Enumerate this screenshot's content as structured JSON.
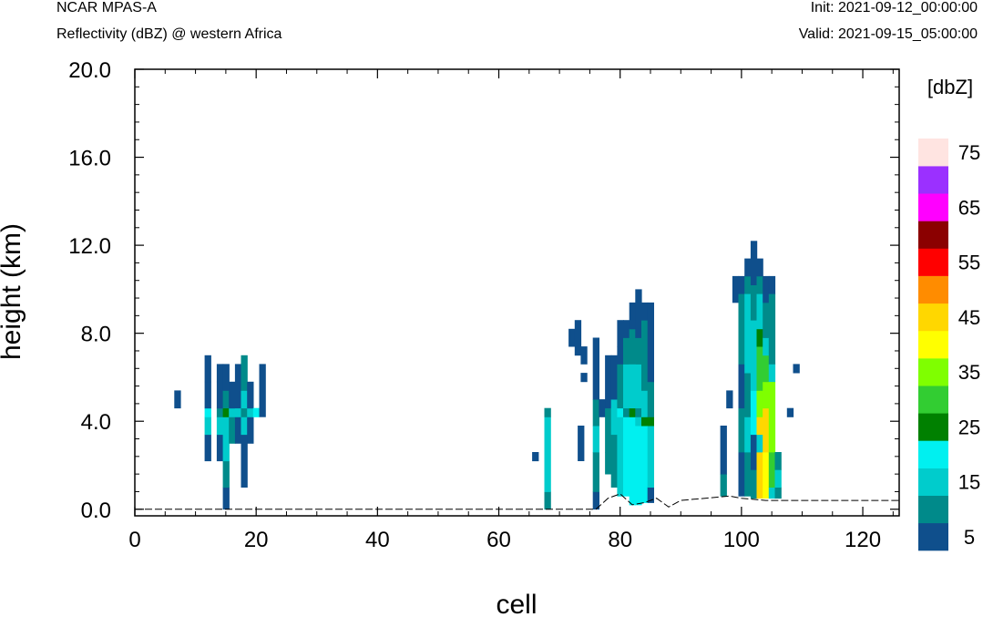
{
  "header": {
    "model": "NCAR MPAS-A",
    "field": "Reflectivity (dBZ) @ western Africa",
    "init": "Init: 2021-09-12_00:00:00",
    "valid": "Valid: 2021-09-15_05:00:00"
  },
  "chart_data": {
    "type": "heatmap",
    "xlabel": "cell",
    "ylabel": "height (km)",
    "xlim": [
      0,
      126
    ],
    "ylim": [
      -0.3,
      20.0
    ],
    "x_ticks": [
      "0",
      "20",
      "40",
      "60",
      "80",
      "100",
      "120"
    ],
    "y_ticks": [
      "0.0",
      "4.0",
      "8.0",
      "12.0",
      "16.0",
      "20.0"
    ],
    "colorbar": {
      "unit_label": "[dbZ]",
      "tick_labels": [
        "5",
        "15",
        "25",
        "35",
        "45",
        "55",
        "65",
        "75"
      ],
      "levels": [
        5,
        10,
        15,
        20,
        25,
        30,
        35,
        40,
        45,
        50,
        55,
        60,
        65,
        70,
        75
      ],
      "colors": [
        "#0f4f8c",
        "#008a8a",
        "#00cccc",
        "#00f0f0",
        "#008000",
        "#32cd32",
        "#7fff00",
        "#ffff00",
        "#ffd700",
        "#ff8c00",
        "#ff0000",
        "#8b0000",
        "#ff00ff",
        "#9b30ff",
        "#ffe4e1"
      ]
    },
    "terrain": [
      [
        76,
        0.0
      ],
      [
        78,
        0.5
      ],
      [
        80,
        0.7
      ],
      [
        82,
        0.2
      ],
      [
        84,
        0.3
      ],
      [
        86,
        0.5
      ],
      [
        88,
        0.1
      ],
      [
        90,
        0.4
      ],
      [
        94,
        0.5
      ],
      [
        98,
        0.6
      ],
      [
        100,
        0.5
      ],
      [
        104,
        0.4
      ],
      [
        110,
        0.4
      ],
      [
        120,
        0.4
      ],
      [
        126,
        0.4
      ]
    ],
    "columns": [
      {
        "x": 7,
        "cells": [
          [
            4.6,
            5.4,
            5
          ]
        ]
      },
      {
        "x": 12,
        "cells": [
          [
            2.2,
            3.4,
            5
          ],
          [
            3.4,
            4.2,
            15
          ],
          [
            4.2,
            4.6,
            20
          ],
          [
            4.6,
            5.8,
            5
          ],
          [
            5.8,
            7.0,
            5
          ]
        ]
      },
      {
        "x": 14,
        "cells": [
          [
            2.2,
            3.4,
            5
          ],
          [
            3.4,
            4.2,
            15
          ],
          [
            4.2,
            4.6,
            10
          ],
          [
            4.6,
            5.8,
            5
          ],
          [
            5.8,
            6.6,
            5
          ]
        ]
      },
      {
        "x": 15,
        "cells": [
          [
            0.0,
            1.0,
            5
          ],
          [
            1.0,
            2.2,
            10
          ],
          [
            2.2,
            4.2,
            15
          ],
          [
            4.2,
            4.6,
            25
          ],
          [
            4.6,
            5.4,
            10
          ],
          [
            5.4,
            6.6,
            5
          ]
        ]
      },
      {
        "x": 16,
        "cells": [
          [
            3.0,
            4.2,
            10
          ],
          [
            4.2,
            4.6,
            15
          ],
          [
            4.6,
            5.8,
            5
          ]
        ]
      },
      {
        "x": 17,
        "cells": [
          [
            3.0,
            4.2,
            5
          ],
          [
            4.2,
            4.6,
            15
          ],
          [
            4.6,
            6.6,
            5
          ]
        ]
      },
      {
        "x": 18,
        "cells": [
          [
            1.0,
            3.4,
            5
          ],
          [
            3.4,
            4.2,
            15
          ],
          [
            4.2,
            4.6,
            10
          ],
          [
            4.6,
            5.4,
            15
          ],
          [
            5.4,
            7.0,
            10
          ]
        ]
      },
      {
        "x": 19,
        "cells": [
          [
            3.0,
            4.2,
            5
          ],
          [
            4.2,
            4.6,
            15
          ],
          [
            4.6,
            5.8,
            5
          ]
        ]
      },
      {
        "x": 20,
        "cells": [
          [
            4.2,
            4.6,
            20
          ]
        ]
      },
      {
        "x": 21,
        "cells": [
          [
            4.2,
            6.6,
            5
          ]
        ]
      },
      {
        "x": 66,
        "cells": [
          [
            2.2,
            2.6,
            5
          ]
        ]
      },
      {
        "x": 68,
        "cells": [
          [
            0.0,
            0.8,
            10
          ],
          [
            0.8,
            4.2,
            15
          ],
          [
            4.2,
            4.6,
            10
          ]
        ]
      },
      {
        "x": 72,
        "cells": [
          [
            7.4,
            8.2,
            5
          ]
        ]
      },
      {
        "x": 73,
        "cells": [
          [
            7.0,
            8.6,
            5
          ]
        ]
      },
      {
        "x": 73.5,
        "cells": [
          [
            2.2,
            3.8,
            5
          ]
        ]
      },
      {
        "x": 74,
        "cells": [
          [
            6.6,
            7.4,
            5
          ],
          [
            5.8,
            6.2,
            5
          ]
        ]
      },
      {
        "x": 76,
        "cells": [
          [
            0.0,
            0.8,
            5
          ],
          [
            0.8,
            2.6,
            10
          ],
          [
            2.6,
            3.8,
            15
          ],
          [
            3.8,
            5.0,
            10
          ],
          [
            5.0,
            7.8,
            5
          ]
        ]
      },
      {
        "x": 77,
        "cells": [
          [
            4.2,
            5.0,
            5
          ]
        ]
      },
      {
        "x": 78,
        "cells": [
          [
            1.6,
            2.6,
            10
          ],
          [
            2.6,
            4.6,
            10
          ],
          [
            4.6,
            7.0,
            5
          ]
        ]
      },
      {
        "x": 79,
        "cells": [
          [
            1.0,
            3.4,
            10
          ],
          [
            3.4,
            5.0,
            15
          ],
          [
            5.0,
            7.0,
            5
          ]
        ]
      },
      {
        "x": 80,
        "cells": [
          [
            0.6,
            4.2,
            15
          ],
          [
            4.2,
            4.6,
            20
          ],
          [
            4.6,
            6.6,
            10
          ],
          [
            6.6,
            7.4,
            5
          ],
          [
            7.4,
            8.6,
            5
          ]
        ]
      },
      {
        "x": 81,
        "cells": [
          [
            0.6,
            4.2,
            20
          ],
          [
            4.2,
            4.6,
            10
          ],
          [
            4.6,
            6.6,
            15
          ],
          [
            6.6,
            7.8,
            10
          ],
          [
            7.8,
            8.6,
            5
          ]
        ]
      },
      {
        "x": 82,
        "cells": [
          [
            0.2,
            4.2,
            20
          ],
          [
            4.2,
            4.6,
            25
          ],
          [
            4.6,
            5.4,
            15
          ],
          [
            5.4,
            6.6,
            15
          ],
          [
            6.6,
            8.2,
            10
          ],
          [
            8.2,
            9.4,
            5
          ]
        ]
      },
      {
        "x": 83,
        "cells": [
          [
            0.2,
            3.8,
            20
          ],
          [
            3.8,
            4.2,
            15
          ],
          [
            4.2,
            4.6,
            10
          ],
          [
            4.6,
            6.6,
            15
          ],
          [
            6.6,
            7.8,
            10
          ],
          [
            7.8,
            8.6,
            5
          ],
          [
            8.6,
            10.0,
            5
          ]
        ]
      },
      {
        "x": 84,
        "cells": [
          [
            0.3,
            3.8,
            20
          ],
          [
            3.8,
            4.2,
            25
          ],
          [
            4.2,
            5.4,
            15
          ],
          [
            5.4,
            7.0,
            10
          ],
          [
            7.0,
            8.6,
            10
          ],
          [
            8.6,
            9.4,
            5
          ]
        ]
      },
      {
        "x": 85,
        "cells": [
          [
            0.3,
            1.0,
            5
          ],
          [
            1.0,
            3.8,
            15
          ],
          [
            3.8,
            4.2,
            25
          ],
          [
            4.2,
            5.8,
            10
          ],
          [
            5.8,
            8.6,
            5
          ],
          [
            8.6,
            9.4,
            5
          ]
        ]
      },
      {
        "x": 97,
        "cells": [
          [
            0.6,
            1.6,
            10
          ],
          [
            1.6,
            3.8,
            5
          ]
        ]
      },
      {
        "x": 98,
        "cells": [
          [
            4.6,
            5.4,
            5
          ]
        ]
      },
      {
        "x": 99,
        "cells": [
          [
            9.4,
            10.6,
            5
          ]
        ]
      },
      {
        "x": 100,
        "cells": [
          [
            0.6,
            2.6,
            5
          ],
          [
            2.6,
            4.6,
            10
          ],
          [
            4.6,
            6.6,
            5
          ],
          [
            6.6,
            9.8,
            10
          ],
          [
            9.8,
            10.6,
            5
          ]
        ]
      },
      {
        "x": 101,
        "cells": [
          [
            0.6,
            2.6,
            10
          ],
          [
            2.6,
            4.2,
            15
          ],
          [
            4.2,
            6.2,
            10
          ],
          [
            6.2,
            9.8,
            15
          ],
          [
            9.8,
            10.6,
            10
          ],
          [
            10.6,
            11.4,
            5
          ]
        ]
      },
      {
        "x": 102,
        "cells": [
          [
            0.5,
            1.8,
            10
          ],
          [
            1.8,
            3.4,
            5
          ],
          [
            3.4,
            5.4,
            20
          ],
          [
            5.4,
            8.6,
            15
          ],
          [
            8.6,
            10.2,
            10
          ],
          [
            10.2,
            12.2,
            5
          ]
        ]
      },
      {
        "x": 103,
        "cells": [
          [
            0.5,
            2.6,
            45
          ],
          [
            2.6,
            3.4,
            15
          ],
          [
            3.4,
            4.2,
            45
          ],
          [
            4.2,
            5.4,
            35
          ],
          [
            5.4,
            7.4,
            30
          ],
          [
            7.4,
            8.2,
            25
          ],
          [
            8.2,
            9.8,
            15
          ],
          [
            9.8,
            10.6,
            10
          ],
          [
            10.6,
            11.4,
            5
          ]
        ]
      },
      {
        "x": 104,
        "cells": [
          [
            0.5,
            2.6,
            40
          ],
          [
            2.6,
            4.6,
            45
          ],
          [
            4.6,
            5.8,
            35
          ],
          [
            5.8,
            7.0,
            30
          ],
          [
            7.0,
            7.8,
            15
          ],
          [
            7.8,
            9.4,
            10
          ],
          [
            9.4,
            10.6,
            5
          ]
        ]
      },
      {
        "x": 105,
        "cells": [
          [
            0.5,
            1.0,
            15
          ],
          [
            1.0,
            2.6,
            30
          ],
          [
            2.6,
            5.8,
            35
          ],
          [
            5.8,
            6.6,
            15
          ],
          [
            6.6,
            9.8,
            10
          ],
          [
            9.8,
            10.6,
            5
          ]
        ]
      },
      {
        "x": 106,
        "cells": [
          [
            0.5,
            1.0,
            10
          ],
          [
            1.0,
            1.8,
            15
          ],
          [
            1.8,
            2.6,
            10
          ]
        ]
      },
      {
        "x": 108,
        "cells": [
          [
            4.2,
            4.6,
            5
          ]
        ]
      },
      {
        "x": 109,
        "cells": [
          [
            6.2,
            6.6,
            5
          ]
        ]
      }
    ]
  }
}
